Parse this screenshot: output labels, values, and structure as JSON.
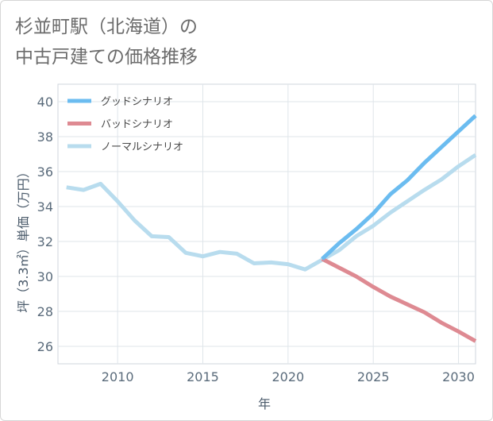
{
  "chart_data": {
    "type": "line",
    "title_line1": "杉並町駅（北海道）の",
    "title_line2": "中古戸建ての価格推移",
    "xlabel": "年",
    "ylabel": "坪（3.3㎡）単価（万円）",
    "xlim": [
      2006.5,
      2031
    ],
    "ylim": [
      25,
      41
    ],
    "xticks": [
      2010,
      2015,
      2020,
      2025,
      2030
    ],
    "yticks": [
      26,
      28,
      30,
      32,
      34,
      36,
      38,
      40
    ],
    "grid": true,
    "legend_position": "top-left",
    "series": [
      {
        "name": "グッドシナリオ",
        "color": "#6bbcf0",
        "x": [
          2022,
          2023,
          2024,
          2025,
          2026,
          2027,
          2028,
          2029,
          2030,
          2031
        ],
        "values": [
          31.0,
          31.9,
          32.7,
          33.6,
          34.7,
          35.5,
          36.5,
          37.4,
          38.3,
          39.2
        ]
      },
      {
        "name": "バッドシナリオ",
        "color": "#de8a92",
        "x": [
          2022,
          2023,
          2024,
          2025,
          2026,
          2027,
          2028,
          2029,
          2030,
          2031
        ],
        "values": [
          31.0,
          30.5,
          30.0,
          29.4,
          28.85,
          28.4,
          27.95,
          27.35,
          26.85,
          26.3
        ]
      },
      {
        "name": "ノーマルシナリオ",
        "color": "#b8dcee",
        "x": [
          2007,
          2008,
          2009,
          2010,
          2011,
          2012,
          2013,
          2014,
          2015,
          2016,
          2017,
          2018,
          2019,
          2020,
          2021,
          2022,
          2023,
          2024,
          2025,
          2026,
          2027,
          2028,
          2029,
          2030,
          2031
        ],
        "values": [
          35.1,
          34.95,
          35.3,
          34.3,
          33.2,
          32.3,
          32.25,
          31.35,
          31.15,
          31.4,
          31.3,
          30.75,
          30.8,
          30.7,
          30.4,
          30.95,
          31.5,
          32.3,
          32.9,
          33.65,
          34.3,
          34.95,
          35.55,
          36.3,
          36.95
        ]
      }
    ]
  }
}
